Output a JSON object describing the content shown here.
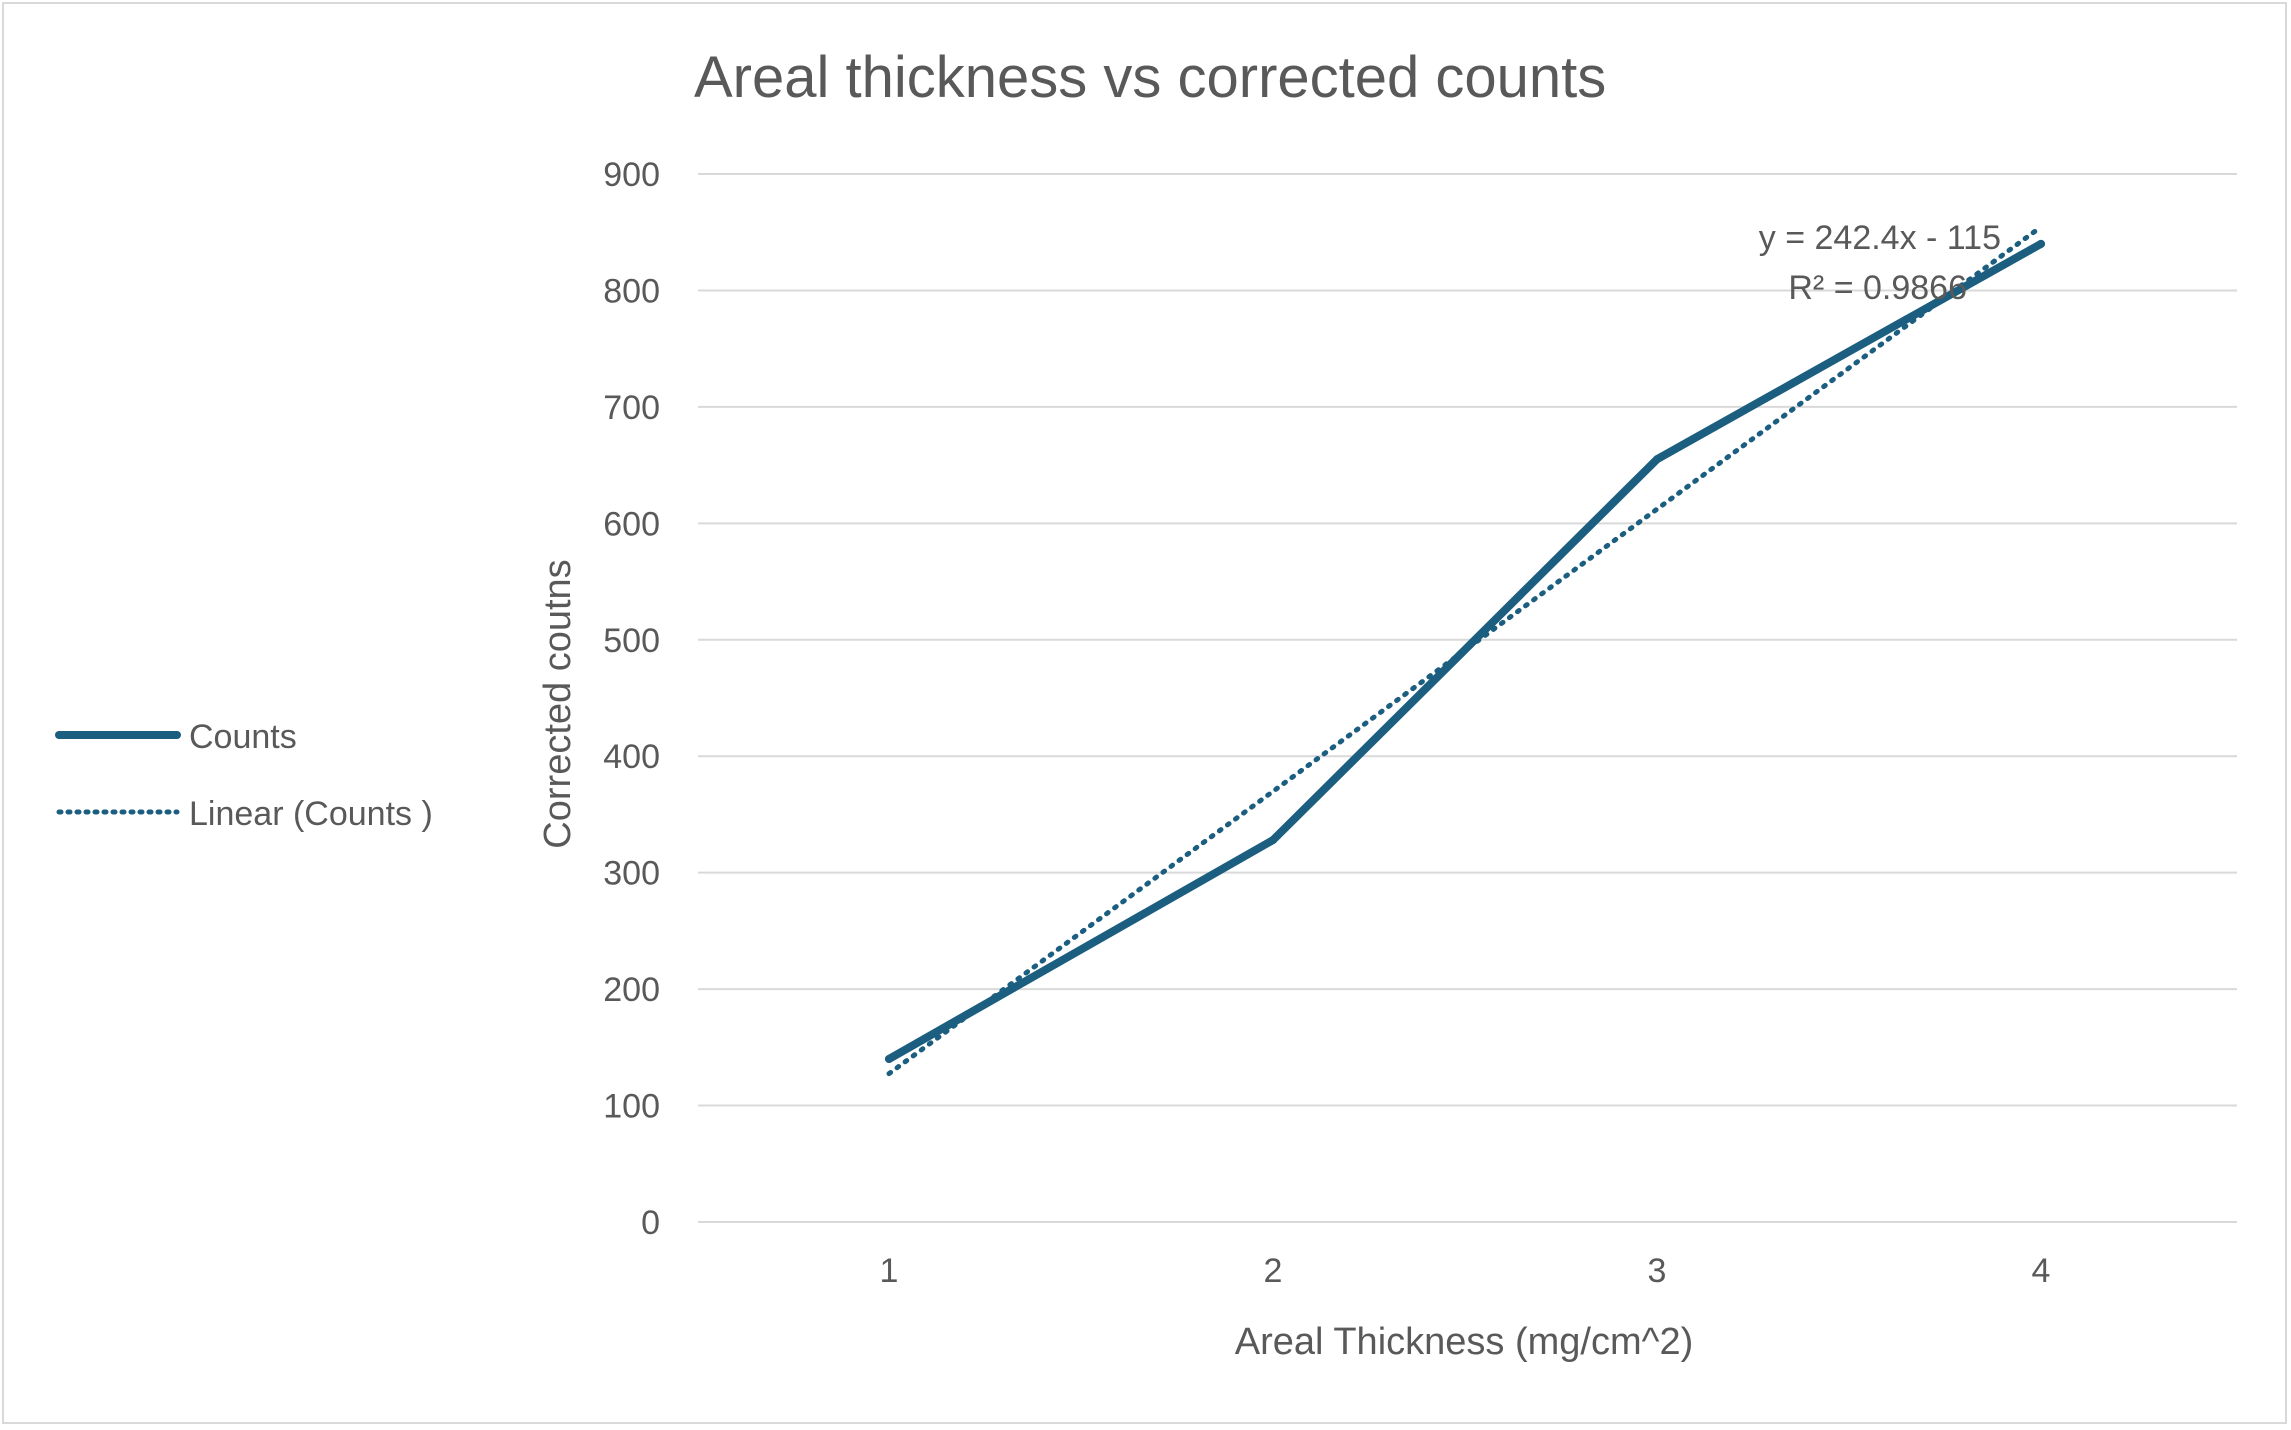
{
  "chart_data": {
    "type": "line",
    "title": "Areal thickness vs corrected counts",
    "xlabel": "Areal Thickness (mg/cm^2)",
    "ylabel": "Corrected coutns",
    "categories": [
      "1",
      "2",
      "3",
      "4"
    ],
    "x": [
      1,
      2,
      3,
      4
    ],
    "ylim": [
      0,
      900
    ],
    "y_ticks": [
      "0",
      "100",
      "200",
      "300",
      "400",
      "500",
      "600",
      "700",
      "800",
      "900"
    ],
    "grid": true,
    "legend_position": "left",
    "series": [
      {
        "name": "Counts",
        "values": [
          140,
          328,
          655,
          840
        ],
        "color": "#1b5e80",
        "style": "solid"
      }
    ],
    "trendline": {
      "name": "Linear (Counts )",
      "slope": 242.4,
      "intercept": -115,
      "color": "#1b5e80",
      "style": "dotted",
      "equation_label": "y = 242.4x - 115",
      "r2_label": "R² = 0.9866"
    },
    "colors": {
      "gridline": "#d9d9d9",
      "text": "#595959",
      "title": "#595959",
      "frame": "#d9d9d9"
    }
  }
}
